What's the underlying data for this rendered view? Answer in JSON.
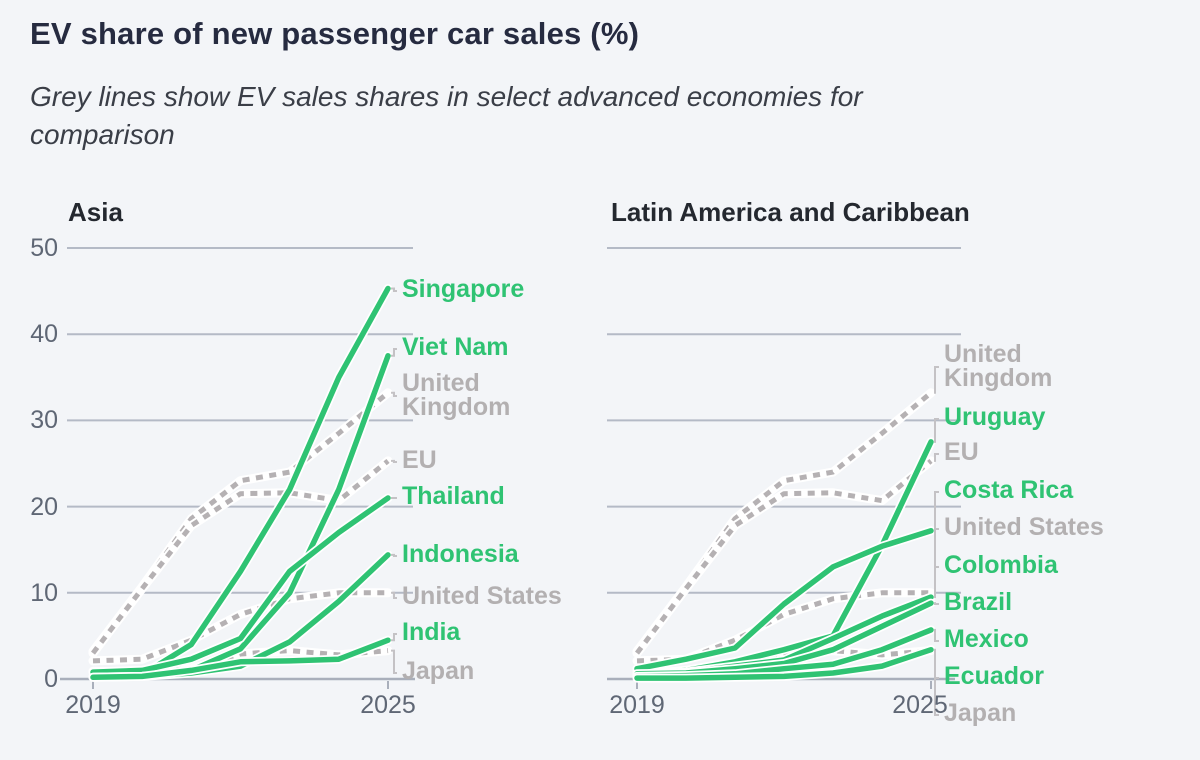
{
  "title": "EV share of new passenger car sales (%)",
  "subtitle": "Grey lines show EV sales shares in select advanced economies for comparison",
  "subtitle_lines": {
    "line1": "Grey lines show EV sales shares in select advanced economies for",
    "line2": "comparison"
  },
  "colors": {
    "highlight_green": "#2fc373",
    "comparison_grey": "#b5b1b3",
    "grey_label": "#b3b0b1",
    "gridline": "#b4bac6",
    "axis_line": "#a9afbb",
    "axis_text": "#5f6775",
    "title_text": "#262b40",
    "background": "#f3f5f8"
  },
  "chart_data": [
    {
      "type": "line",
      "title": "Asia",
      "x": [
        2019,
        2020,
        2021,
        2022,
        2023,
        2024,
        2025
      ],
      "x_tick_labels": [
        "2019",
        "2025"
      ],
      "y_ticks": [
        0,
        10,
        20,
        30,
        40,
        50
      ],
      "ylim": [
        0,
        50
      ],
      "grid": "horizontal",
      "legend_position": "right-edge-direct-labels",
      "series": [
        {
          "name": "Singapore",
          "group": "highlight",
          "dashed": false,
          "values": [
            0.3,
            0.5,
            4.0,
            12.5,
            22.0,
            35.0,
            45.3
          ]
        },
        {
          "name": "Viet Nam",
          "group": "highlight",
          "dashed": false,
          "values": [
            0.2,
            0.4,
            1.0,
            3.5,
            10.0,
            22.0,
            37.5
          ]
        },
        {
          "name": "United Kingdom",
          "group": "comparison",
          "dashed": true,
          "values": [
            3.2,
            10.7,
            18.6,
            23.0,
            24.0,
            28.5,
            33.2
          ]
        },
        {
          "name": "EU",
          "group": "comparison",
          "dashed": true,
          "values": [
            3.0,
            10.5,
            17.8,
            21.5,
            21.6,
            20.7,
            25.3
          ]
        },
        {
          "name": "Thailand",
          "group": "highlight",
          "dashed": false,
          "values": [
            0.8,
            1.0,
            2.3,
            4.7,
            12.5,
            17.0,
            21.0
          ]
        },
        {
          "name": "Indonesia",
          "group": "highlight",
          "dashed": false,
          "values": [
            0.2,
            0.3,
            0.7,
            1.5,
            4.3,
            9.0,
            14.4
          ]
        },
        {
          "name": "United States",
          "group": "comparison",
          "dashed": true,
          "values": [
            2.1,
            2.3,
            4.5,
            7.5,
            9.3,
            10.0,
            10.0
          ]
        },
        {
          "name": "India",
          "group": "highlight",
          "dashed": false,
          "values": [
            0.2,
            0.3,
            1.0,
            2.0,
            2.1,
            2.3,
            4.5
          ]
        },
        {
          "name": "Japan",
          "group": "comparison",
          "dashed": true,
          "values": [
            0.9,
            0.8,
            1.2,
            2.9,
            3.3,
            2.8,
            3.3
          ]
        }
      ]
    },
    {
      "type": "line",
      "title": "Latin America and Caribbean",
      "x": [
        2019,
        2020,
        2021,
        2022,
        2023,
        2024,
        2025
      ],
      "x_tick_labels": [
        "2019",
        "2025"
      ],
      "y_ticks": [
        0,
        10,
        20,
        30,
        40,
        50
      ],
      "ylim": [
        0,
        50
      ],
      "grid": "horizontal",
      "legend_position": "right-edge-direct-labels",
      "series": [
        {
          "name": "United Kingdom",
          "group": "comparison",
          "dashed": true,
          "values": [
            3.2,
            10.7,
            18.6,
            23.0,
            24.0,
            28.5,
            33.2
          ]
        },
        {
          "name": "Uruguay",
          "group": "highlight",
          "dashed": false,
          "values": [
            0.5,
            1.0,
            2.0,
            3.4,
            5.0,
            15.5,
            27.5
          ]
        },
        {
          "name": "EU",
          "group": "comparison",
          "dashed": true,
          "values": [
            3.0,
            10.5,
            17.8,
            21.5,
            21.6,
            20.7,
            25.3
          ]
        },
        {
          "name": "Costa Rica",
          "group": "highlight",
          "dashed": false,
          "values": [
            1.2,
            2.3,
            3.6,
            8.7,
            13.0,
            15.4,
            17.2
          ]
        },
        {
          "name": "United States",
          "group": "comparison",
          "dashed": true,
          "values": [
            2.1,
            2.3,
            4.5,
            7.5,
            9.3,
            10.0,
            10.0
          ]
        },
        {
          "name": "Colombia",
          "group": "highlight",
          "dashed": false,
          "values": [
            0.5,
            0.8,
            1.5,
            2.2,
            4.7,
            7.3,
            9.5
          ]
        },
        {
          "name": "Brazil",
          "group": "highlight",
          "dashed": false,
          "values": [
            0.6,
            0.7,
            1.2,
            1.8,
            3.4,
            6.1,
            8.8
          ]
        },
        {
          "name": "Mexico",
          "group": "highlight",
          "dashed": false,
          "values": [
            0.3,
            0.4,
            0.6,
            1.2,
            1.7,
            3.4,
            5.7
          ]
        },
        {
          "name": "Ecuador",
          "group": "highlight",
          "dashed": false,
          "values": [
            0.1,
            0.1,
            0.2,
            0.3,
            0.7,
            1.5,
            3.4
          ]
        },
        {
          "name": "Japan",
          "group": "comparison",
          "dashed": true,
          "values": [
            0.9,
            0.8,
            1.2,
            2.9,
            3.3,
            2.8,
            3.3
          ]
        }
      ]
    }
  ]
}
